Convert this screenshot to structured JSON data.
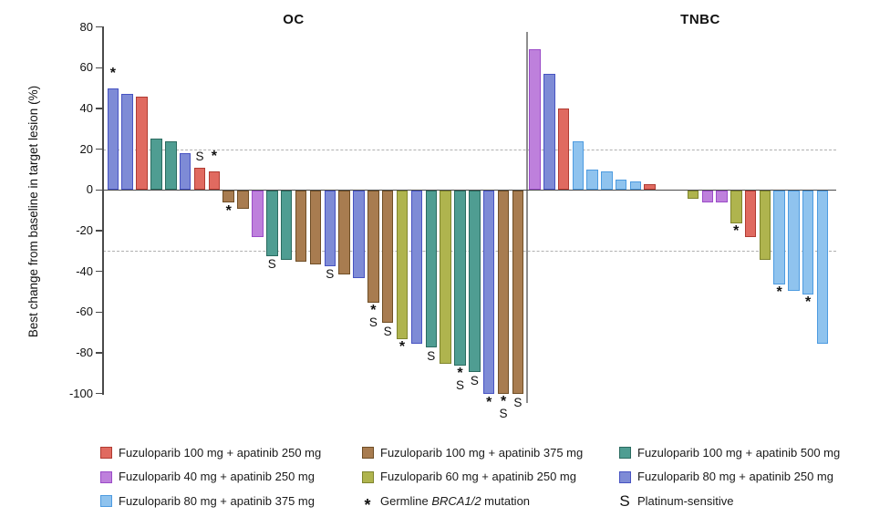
{
  "chart_data": {
    "type": "bar",
    "subtype": "waterfall",
    "ylabel": "Best change from baseline in target lesion (%)",
    "ylim": [
      -100,
      80
    ],
    "yticks": [
      80,
      60,
      40,
      20,
      0,
      -20,
      -40,
      -60,
      -80,
      -100
    ],
    "reference_lines": [
      20,
      -30
    ],
    "grid": "dashed-reference-only",
    "legend_position": "bottom",
    "series": {
      "f100_a250": {
        "label": "Fuzuloparib 100 mg + apatinib 250 mg",
        "fill": "#E06A60",
        "stroke": "#B03B32"
      },
      "f100_a375": {
        "label": "Fuzuloparib 100 mg + apatinib 375 mg",
        "fill": "#A87C50",
        "stroke": "#6F4E26"
      },
      "f100_a500": {
        "label": "Fuzuloparib 100 mg + apatinib 500 mg",
        "fill": "#4F9D92",
        "stroke": "#2B6B60"
      },
      "f40_a250": {
        "label": "Fuzuloparib 40 mg + apatinib 250 mg",
        "fill": "#BE80DC",
        "stroke": "#9B4CC8"
      },
      "f60_a250": {
        "label": "Fuzuloparib 60 mg + apatinib 250 mg",
        "fill": "#AFB44E",
        "stroke": "#7F852E"
      },
      "f80_a250": {
        "label": "Fuzuloparib 80 mg + apatinib 250 mg",
        "fill": "#7E8BD6",
        "stroke": "#4753C2"
      },
      "f80_a375": {
        "label": "Fuzuloparib 80 mg + apatinib 375 mg",
        "fill": "#8FC3EE",
        "stroke": "#4D9BE0"
      }
    },
    "groups": [
      {
        "name": "OC",
        "bars": [
          {
            "value": 50,
            "series": "f80_a250",
            "mark": "*"
          },
          {
            "value": 47,
            "series": "f80_a250"
          },
          {
            "value": 46,
            "series": "f100_a250"
          },
          {
            "value": 25,
            "series": "f100_a500"
          },
          {
            "value": 24,
            "series": "f100_a500"
          },
          {
            "value": 18,
            "series": "f80_a250"
          },
          {
            "value": 11,
            "series": "f100_a250",
            "mark": "S"
          },
          {
            "value": 9,
            "series": "f100_a250",
            "mark": "*"
          },
          {
            "value": -6,
            "series": "f100_a375",
            "mark": "*"
          },
          {
            "value": -9,
            "series": "f100_a375"
          },
          {
            "value": -23,
            "series": "f40_a250"
          },
          {
            "value": -32,
            "series": "f100_a500",
            "mark": "S"
          },
          {
            "value": -34,
            "series": "f100_a500"
          },
          {
            "value": -35,
            "series": "f100_a375"
          },
          {
            "value": -36,
            "series": "f100_a375"
          },
          {
            "value": -37,
            "series": "f80_a250",
            "mark": "S"
          },
          {
            "value": -41,
            "series": "f100_a375"
          },
          {
            "value": -43,
            "series": "f80_a250"
          },
          {
            "value": -55,
            "series": "f100_a375",
            "mark": "*S"
          },
          {
            "value": -65,
            "series": "f100_a375",
            "mark": "S"
          },
          {
            "value": -73,
            "series": "f60_a250",
            "mark": "*"
          },
          {
            "value": -75,
            "series": "f80_a250"
          },
          {
            "value": -77,
            "series": "f100_a500",
            "mark": "S"
          },
          {
            "value": -85,
            "series": "f60_a250"
          },
          {
            "value": -86,
            "series": "f100_a500",
            "mark": "*S"
          },
          {
            "value": -89,
            "series": "f100_a500",
            "mark": "S"
          },
          {
            "value": -100,
            "series": "f80_a250",
            "mark": "*"
          },
          {
            "value": -100,
            "series": "f100_a375",
            "mark": "*S"
          },
          {
            "value": -100,
            "series": "f100_a375",
            "mark": "S"
          }
        ]
      },
      {
        "name": "TNBC",
        "bars": [
          {
            "value": 69,
            "series": "f40_a250"
          },
          {
            "value": 57,
            "series": "f80_a250"
          },
          {
            "value": 40,
            "series": "f100_a250"
          },
          {
            "value": 24,
            "series": "f80_a375"
          },
          {
            "value": 10,
            "series": "f80_a375"
          },
          {
            "value": 9,
            "series": "f80_a375"
          },
          {
            "value": 5,
            "series": "f80_a375"
          },
          {
            "value": 4,
            "series": "f80_a375"
          },
          {
            "value": 3,
            "series": "f100_a250"
          },
          {
            "value": 0,
            "series": null
          },
          {
            "value": 0,
            "series": null
          },
          {
            "value": -4,
            "series": "f60_a250"
          },
          {
            "value": -6,
            "series": "f40_a250"
          },
          {
            "value": -6,
            "series": "f40_a250"
          },
          {
            "value": -16,
            "series": "f60_a250",
            "mark": "*"
          },
          {
            "value": -23,
            "series": "f100_a250"
          },
          {
            "value": -34,
            "series": "f60_a250"
          },
          {
            "value": -46,
            "series": "f80_a375",
            "mark": "*"
          },
          {
            "value": -49,
            "series": "f80_a375"
          },
          {
            "value": -51,
            "series": "f80_a375",
            "mark": "*"
          },
          {
            "value": -75,
            "series": "f80_a375"
          }
        ]
      }
    ],
    "marker_legend": [
      {
        "symbol": "*",
        "label_parts": [
          {
            "text": "Germline "
          },
          {
            "text": "BRCA1/2",
            "italic": true
          },
          {
            "text": " mutation"
          }
        ]
      },
      {
        "symbol": "S",
        "label": "Platinum-sensitive"
      }
    ],
    "legend_columns": [
      {
        "items": [
          "f100_a250",
          "f40_a250",
          "f80_a375"
        ]
      },
      {
        "items": [
          "f100_a375",
          "f60_a250",
          "marker:*"
        ]
      },
      {
        "items": [
          "f100_a500",
          "f80_a250",
          "marker:S"
        ]
      }
    ]
  }
}
